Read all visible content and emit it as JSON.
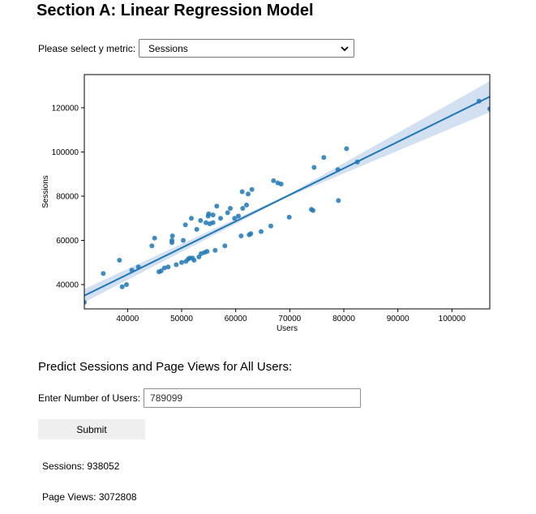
{
  "header": {
    "title": "Section A: Linear Regression Model"
  },
  "metric_selector": {
    "label": "Please select y metric:",
    "selected": "Sessions",
    "icon": "chevron-down-icon"
  },
  "chart_data": {
    "type": "scatter",
    "xlabel": "Users",
    "ylabel": "Sessions",
    "xlim": [
      32000,
      107000
    ],
    "ylim": [
      29000,
      135000
    ],
    "xticks": [
      40000,
      50000,
      60000,
      70000,
      80000,
      90000,
      100000
    ],
    "yticks": [
      40000,
      60000,
      80000,
      100000,
      120000
    ],
    "grid": false,
    "regression_line": {
      "x": [
        32000,
        107000
      ],
      "y": [
        35000,
        125000
      ]
    },
    "confidence_band": {
      "x": [
        32000,
        69500,
        107000
      ],
      "lower": [
        32000,
        79500,
        118000
      ],
      "upper": [
        38000,
        80500,
        132000
      ]
    },
    "colors": {
      "points": "#1f77b4",
      "line": "#1f77b4",
      "band": "#aec7e8"
    },
    "points": [
      [
        32000,
        32000
      ],
      [
        35500,
        45000
      ],
      [
        38500,
        51000
      ],
      [
        39000,
        39000
      ],
      [
        39800,
        40000
      ],
      [
        40800,
        46500
      ],
      [
        42000,
        48000
      ],
      [
        44500,
        57500
      ],
      [
        45000,
        61000
      ],
      [
        45800,
        45800
      ],
      [
        46200,
        46200
      ],
      [
        46800,
        47500
      ],
      [
        47500,
        48000
      ],
      [
        48200,
        59000
      ],
      [
        48200,
        60000
      ],
      [
        48300,
        62000
      ],
      [
        49000,
        49000
      ],
      [
        50000,
        50000
      ],
      [
        50300,
        60000
      ],
      [
        50700,
        67000
      ],
      [
        50800,
        50500
      ],
      [
        51200,
        51500
      ],
      [
        51500,
        52000
      ],
      [
        51800,
        70000
      ],
      [
        52000,
        52000
      ],
      [
        52300,
        51000
      ],
      [
        52800,
        65000
      ],
      [
        53200,
        52500
      ],
      [
        53500,
        69000
      ],
      [
        53600,
        54000
      ],
      [
        54200,
        54500
      ],
      [
        54500,
        68000
      ],
      [
        54700,
        55000
      ],
      [
        54900,
        71000
      ],
      [
        55000,
        72000
      ],
      [
        55200,
        67500
      ],
      [
        55800,
        68000
      ],
      [
        55800,
        71500
      ],
      [
        56200,
        55500
      ],
      [
        56500,
        75500
      ],
      [
        57200,
        70000
      ],
      [
        58000,
        57500
      ],
      [
        58500,
        72500
      ],
      [
        59000,
        74500
      ],
      [
        59800,
        70000
      ],
      [
        60500,
        71000
      ],
      [
        61000,
        62000
      ],
      [
        61200,
        82000
      ],
      [
        61300,
        74500
      ],
      [
        62000,
        76000
      ],
      [
        62300,
        81000
      ],
      [
        62500,
        62500
      ],
      [
        62800,
        63000
      ],
      [
        63000,
        83000
      ],
      [
        64700,
        64000
      ],
      [
        66500,
        66500
      ],
      [
        67000,
        87000
      ],
      [
        67800,
        86000
      ],
      [
        68400,
        85500
      ],
      [
        69900,
        70500
      ],
      [
        74000,
        74000
      ],
      [
        74300,
        73500
      ],
      [
        74500,
        93000
      ],
      [
        76300,
        97500
      ],
      [
        78900,
        92000
      ],
      [
        79000,
        78000
      ],
      [
        80500,
        101500
      ],
      [
        82500,
        95500
      ],
      [
        105000,
        123000
      ],
      [
        107000,
        119500
      ]
    ]
  },
  "predict": {
    "title": "Predict Sessions and Page Views for All Users:",
    "users_label": "Enter Number of Users:",
    "users_value": "789099",
    "submit_label": "Submit"
  },
  "results": {
    "sessions": "Sessions: 938052",
    "page_views": "Page Views: 3072808"
  }
}
